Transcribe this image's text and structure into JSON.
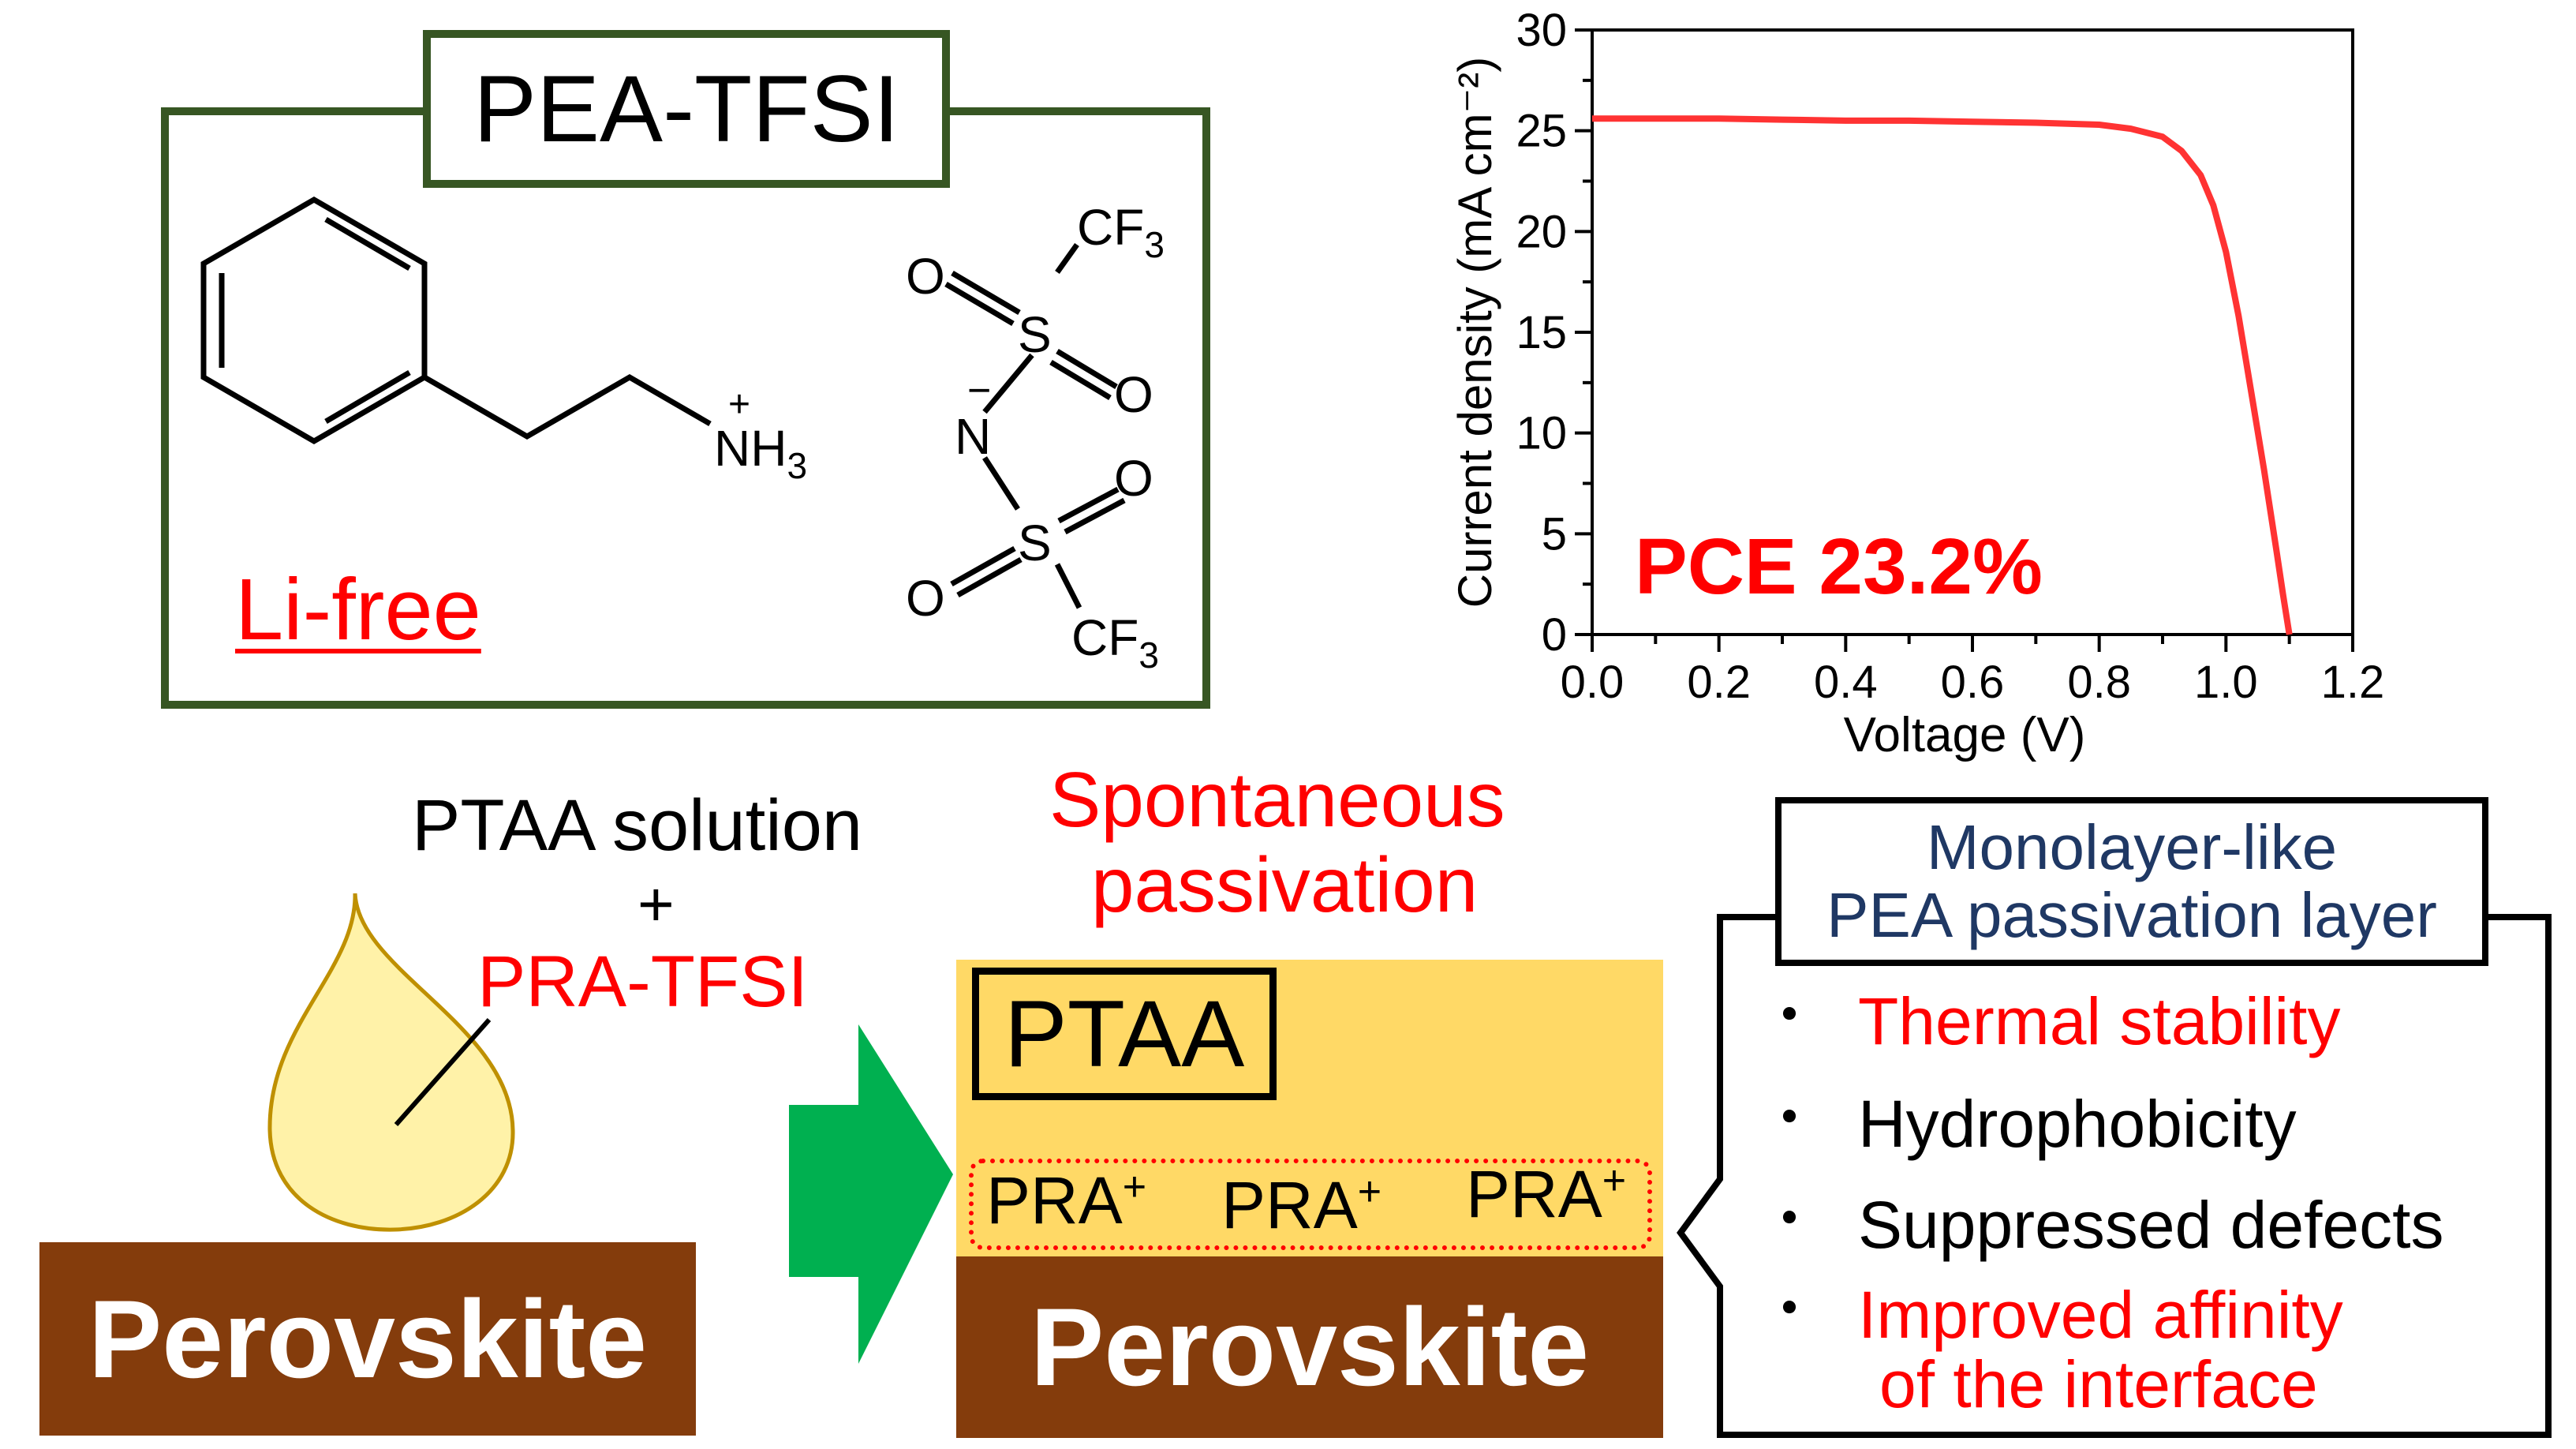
{
  "molecule_box": {
    "title": "PEA-TFSI",
    "li_free": "Li-free",
    "ammonium": {
      "charge": "+",
      "text": "NH",
      "sub": "3"
    },
    "tfsi": {
      "cf3_top": "CF",
      "cf3_top_sub": "3",
      "cf3_bottom": "CF",
      "cf3_bottom_sub": "3",
      "s_top": "S",
      "s_bottom": "S",
      "n": "N",
      "n_charge": "−",
      "o1": "O",
      "o2": "O",
      "o3": "O",
      "o4": "O"
    },
    "colors": {
      "border": "#375623",
      "accent": "#ff0000"
    }
  },
  "chart_data": {
    "type": "line",
    "xlabel": "Voltage (V)",
    "ylabel": "Current density (mA cm⁻²)",
    "xlim": [
      0.0,
      1.2
    ],
    "ylim": [
      0,
      30
    ],
    "xticks": [
      "0.0",
      "0.2",
      "0.4",
      "0.6",
      "0.8",
      "1.0",
      "1.2"
    ],
    "yticks": [
      "0",
      "5",
      "10",
      "15",
      "20",
      "25",
      "30"
    ],
    "annotation": "PCE 23.2%",
    "series": [
      {
        "color": "#ff3333",
        "x": [
          0.0,
          0.1,
          0.2,
          0.3,
          0.4,
          0.5,
          0.6,
          0.7,
          0.8,
          0.85,
          0.9,
          0.93,
          0.96,
          0.98,
          1.0,
          1.02,
          1.04,
          1.06,
          1.08,
          1.09,
          1.1
        ],
        "y": [
          25.6,
          25.6,
          25.6,
          25.55,
          25.5,
          25.5,
          25.45,
          25.4,
          25.3,
          25.1,
          24.7,
          24.0,
          22.8,
          21.3,
          19.0,
          15.8,
          12.0,
          8.2,
          4.1,
          2.0,
          0.0
        ]
      }
    ]
  },
  "process": {
    "solution_line1": "PTAA solution",
    "plus": "+",
    "solution_line2": "PRA-TFSI",
    "left_substrate": "Perovskite",
    "spontaneous_line1": "Spontaneous",
    "spontaneous_line2": "passivation",
    "ptaa_label": "PTAA",
    "pra": [
      "PRA",
      "PRA",
      "PRA"
    ],
    "pra_charge": "+",
    "right_substrate": "Perovskite",
    "colors": {
      "perovskite": "#843c0c",
      "ptaa": "#ffd966",
      "arrow": "#00b050",
      "drop_fill": "#fff2a8",
      "drop_stroke": "#bf9000",
      "red": "#ff0000"
    }
  },
  "callout": {
    "title_line1": "Monolayer-like",
    "title_line2": "PEA passivation layer",
    "bullet": "・",
    "items": [
      {
        "text": "Thermal stability",
        "color": "#ff0000"
      },
      {
        "text": "Hydrophobicity",
        "color": "#000000"
      },
      {
        "text": "Suppressed defects",
        "color": "#000000"
      },
      {
        "text": "Improved affinity",
        "text2": "of the interface",
        "color": "#ff0000"
      }
    ],
    "title_color": "#1f3864"
  }
}
